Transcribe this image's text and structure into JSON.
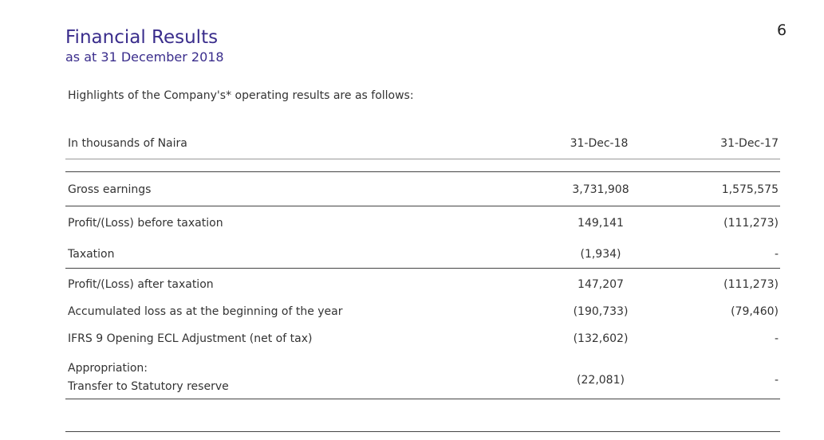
{
  "header": {
    "title": "Financial Results",
    "subtitle": "as at 31 December 2018",
    "page_number": "6"
  },
  "intro": "Highlights of the Company's* operating results are as follows:",
  "table": {
    "columns": [
      "In thousands of Naira",
      "31-Dec-18",
      "31-Dec-17"
    ],
    "rows": [
      {
        "label": "Gross earnings",
        "values": [
          "3,731,908",
          "1,575,575"
        ]
      },
      {
        "label": "Profit/(Loss) before taxation",
        "values": [
          "149,141",
          "(111,273)"
        ]
      },
      {
        "label": "Taxation",
        "values": [
          "(1,934)",
          "-"
        ]
      },
      {
        "label": "Profit/(Loss) after taxation",
        "values": [
          "147,207",
          "(111,273)"
        ]
      },
      {
        "label": "Accumulated loss as at the beginning of the year",
        "values": [
          "(190,733)",
          "(79,460)"
        ]
      },
      {
        "label": "IFRS 9 Opening ECL Adjustment (net of tax)",
        "values": [
          "(132,602)",
          "-"
        ]
      },
      {
        "label": [
          "Appropriation:",
          "Transfer to Statutory reserve"
        ],
        "values": [
          "(22,081)",
          "-"
        ]
      }
    ]
  }
}
